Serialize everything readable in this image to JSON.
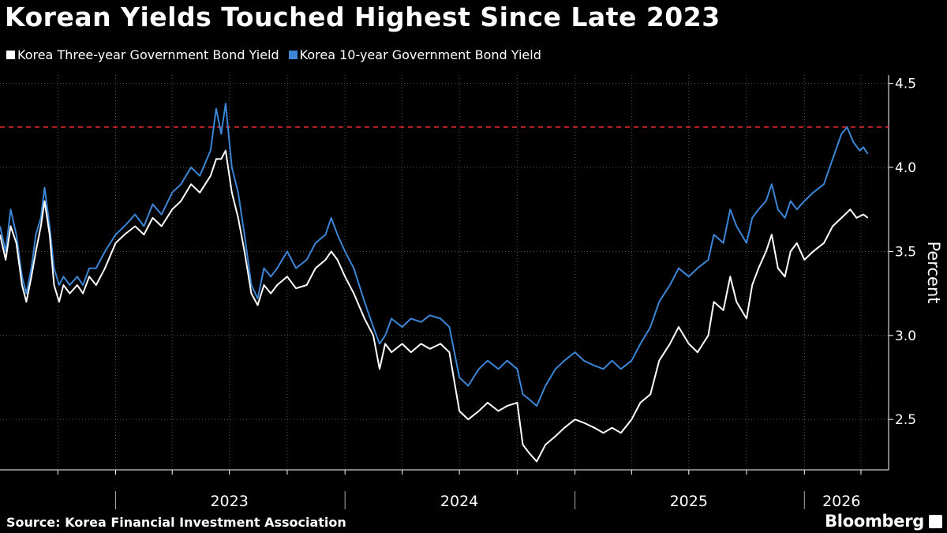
{
  "title": "Korean Yields Touched Highest Since Late 2023",
  "source": "Source: Korea Financial Investment Association",
  "brand": "Bloomberg",
  "chart_data": {
    "type": "line",
    "ylabel": "Percent",
    "ylim": [
      2.2,
      4.55
    ],
    "y_ticks": [
      2.5,
      3.0,
      3.5,
      4.0,
      4.5
    ],
    "y_tick_labels": [
      "2.5",
      "3.0",
      "3.5",
      "4.0",
      "4.5"
    ],
    "xlim": [
      "2022-07-01",
      "2026-05-15"
    ],
    "x_year_labels": [
      {
        "label": "2023",
        "date": "2023-07-01"
      },
      {
        "label": "2024",
        "date": "2024-07-01"
      },
      {
        "label": "2025",
        "date": "2025-07-01"
      },
      {
        "label": "2026",
        "date": "2026-03-01"
      }
    ],
    "x_year_boundaries": [
      "2023-01-01",
      "2024-01-01",
      "2025-01-01",
      "2026-01-01"
    ],
    "grid": true,
    "legend_position": "top-left",
    "reference_line": {
      "y": 4.24,
      "color": "#e0262e",
      "style": "dashed"
    },
    "series": [
      {
        "name": "Korea Three-year Government Bond Yield",
        "color": "#ffffff",
        "points": [
          [
            "2022-07-01",
            3.6
          ],
          [
            "2022-07-10",
            3.45
          ],
          [
            "2022-07-18",
            3.65
          ],
          [
            "2022-07-27",
            3.55
          ],
          [
            "2022-08-05",
            3.3
          ],
          [
            "2022-08-12",
            3.2
          ],
          [
            "2022-08-20",
            3.35
          ],
          [
            "2022-08-27",
            3.5
          ],
          [
            "2022-09-04",
            3.65
          ],
          [
            "2022-09-10",
            3.8
          ],
          [
            "2022-09-18",
            3.6
          ],
          [
            "2022-09-25",
            3.3
          ],
          [
            "2022-10-03",
            3.2
          ],
          [
            "2022-10-10",
            3.3
          ],
          [
            "2022-10-20",
            3.25
          ],
          [
            "2022-11-01",
            3.3
          ],
          [
            "2022-11-10",
            3.25
          ],
          [
            "2022-11-20",
            3.35
          ],
          [
            "2022-12-01",
            3.3
          ],
          [
            "2022-12-15",
            3.4
          ],
          [
            "2023-01-01",
            3.55
          ],
          [
            "2023-01-15",
            3.6
          ],
          [
            "2023-02-01",
            3.65
          ],
          [
            "2023-02-15",
            3.6
          ],
          [
            "2023-03-01",
            3.7
          ],
          [
            "2023-03-15",
            3.65
          ],
          [
            "2023-04-01",
            3.75
          ],
          [
            "2023-04-15",
            3.8
          ],
          [
            "2023-05-01",
            3.9
          ],
          [
            "2023-05-15",
            3.85
          ],
          [
            "2023-06-01",
            3.95
          ],
          [
            "2023-06-10",
            4.05
          ],
          [
            "2023-06-18",
            4.05
          ],
          [
            "2023-06-25",
            4.1
          ],
          [
            "2023-07-05",
            3.85
          ],
          [
            "2023-07-15",
            3.7
          ],
          [
            "2023-07-25",
            3.5
          ],
          [
            "2023-08-05",
            3.25
          ],
          [
            "2023-08-15",
            3.18
          ],
          [
            "2023-08-25",
            3.3
          ],
          [
            "2023-09-05",
            3.25
          ],
          [
            "2023-09-15",
            3.3
          ],
          [
            "2023-10-01",
            3.35
          ],
          [
            "2023-10-15",
            3.28
          ],
          [
            "2023-11-01",
            3.3
          ],
          [
            "2023-11-15",
            3.4
          ],
          [
            "2023-12-01",
            3.45
          ],
          [
            "2023-12-10",
            3.5
          ],
          [
            "2023-12-20",
            3.45
          ],
          [
            "2024-01-01",
            3.35
          ],
          [
            "2024-01-15",
            3.25
          ],
          [
            "2024-02-01",
            3.1
          ],
          [
            "2024-02-15",
            3.0
          ],
          [
            "2024-02-25",
            2.8
          ],
          [
            "2024-03-05",
            2.95
          ],
          [
            "2024-03-15",
            2.9
          ],
          [
            "2024-04-01",
            2.95
          ],
          [
            "2024-04-15",
            2.9
          ],
          [
            "2024-05-01",
            2.95
          ],
          [
            "2024-05-15",
            2.92
          ],
          [
            "2024-06-01",
            2.95
          ],
          [
            "2024-06-15",
            2.9
          ],
          [
            "2024-07-01",
            2.55
          ],
          [
            "2024-07-15",
            2.5
          ],
          [
            "2024-08-01",
            2.55
          ],
          [
            "2024-08-15",
            2.6
          ],
          [
            "2024-09-01",
            2.55
          ],
          [
            "2024-09-15",
            2.58
          ],
          [
            "2024-10-01",
            2.6
          ],
          [
            "2024-10-10",
            2.35
          ],
          [
            "2024-10-20",
            2.3
          ],
          [
            "2024-11-01",
            2.25
          ],
          [
            "2024-11-15",
            2.35
          ],
          [
            "2024-12-01",
            2.4
          ],
          [
            "2024-12-15",
            2.45
          ],
          [
            "2025-01-01",
            2.5
          ],
          [
            "2025-01-15",
            2.48
          ],
          [
            "2025-02-01",
            2.45
          ],
          [
            "2025-02-15",
            2.42
          ],
          [
            "2025-03-01",
            2.45
          ],
          [
            "2025-03-15",
            2.42
          ],
          [
            "2025-04-01",
            2.5
          ],
          [
            "2025-04-15",
            2.6
          ],
          [
            "2025-05-01",
            2.65
          ],
          [
            "2025-05-15",
            2.85
          ],
          [
            "2025-06-01",
            2.95
          ],
          [
            "2025-06-15",
            3.05
          ],
          [
            "2025-07-01",
            2.95
          ],
          [
            "2025-07-15",
            2.9
          ],
          [
            "2025-08-01",
            3.0
          ],
          [
            "2025-08-10",
            3.2
          ],
          [
            "2025-08-25",
            3.15
          ],
          [
            "2025-09-05",
            3.35
          ],
          [
            "2025-09-15",
            3.2
          ],
          [
            "2025-10-01",
            3.1
          ],
          [
            "2025-10-10",
            3.3
          ],
          [
            "2025-10-20",
            3.4
          ],
          [
            "2025-11-01",
            3.5
          ],
          [
            "2025-11-10",
            3.6
          ],
          [
            "2025-11-20",
            3.4
          ],
          [
            "2025-12-01",
            3.35
          ],
          [
            "2025-12-10",
            3.5
          ],
          [
            "2025-12-20",
            3.55
          ],
          [
            "2026-01-01",
            3.45
          ],
          [
            "2026-01-15",
            3.5
          ],
          [
            "2026-02-01",
            3.55
          ],
          [
            "2026-02-15",
            3.65
          ],
          [
            "2026-03-01",
            3.7
          ],
          [
            "2026-03-15",
            3.75
          ],
          [
            "2026-03-25",
            3.7
          ],
          [
            "2026-04-05",
            3.72
          ],
          [
            "2026-04-12",
            3.7
          ]
        ]
      },
      {
        "name": "Korea 10-year Government Bond Yield",
        "color": "#3b86d6",
        "points": [
          [
            "2022-07-01",
            3.65
          ],
          [
            "2022-07-10",
            3.5
          ],
          [
            "2022-07-18",
            3.75
          ],
          [
            "2022-07-27",
            3.6
          ],
          [
            "2022-08-05",
            3.35
          ],
          [
            "2022-08-12",
            3.25
          ],
          [
            "2022-08-20",
            3.4
          ],
          [
            "2022-08-27",
            3.6
          ],
          [
            "2022-09-04",
            3.7
          ],
          [
            "2022-09-10",
            3.88
          ],
          [
            "2022-09-18",
            3.65
          ],
          [
            "2022-09-25",
            3.4
          ],
          [
            "2022-10-03",
            3.3
          ],
          [
            "2022-10-10",
            3.35
          ],
          [
            "2022-10-20",
            3.3
          ],
          [
            "2022-11-01",
            3.35
          ],
          [
            "2022-11-10",
            3.3
          ],
          [
            "2022-11-20",
            3.4
          ],
          [
            "2022-12-01",
            3.4
          ],
          [
            "2022-12-15",
            3.5
          ],
          [
            "2023-01-01",
            3.6
          ],
          [
            "2023-01-15",
            3.65
          ],
          [
            "2023-02-01",
            3.72
          ],
          [
            "2023-02-15",
            3.65
          ],
          [
            "2023-03-01",
            3.78
          ],
          [
            "2023-03-15",
            3.72
          ],
          [
            "2023-04-01",
            3.85
          ],
          [
            "2023-04-15",
            3.9
          ],
          [
            "2023-05-01",
            4.0
          ],
          [
            "2023-05-15",
            3.95
          ],
          [
            "2023-06-01",
            4.1
          ],
          [
            "2023-06-10",
            4.35
          ],
          [
            "2023-06-18",
            4.2
          ],
          [
            "2023-06-25",
            4.38
          ],
          [
            "2023-07-05",
            4.0
          ],
          [
            "2023-07-15",
            3.85
          ],
          [
            "2023-07-25",
            3.6
          ],
          [
            "2023-08-05",
            3.3
          ],
          [
            "2023-08-15",
            3.22
          ],
          [
            "2023-08-25",
            3.4
          ],
          [
            "2023-09-05",
            3.35
          ],
          [
            "2023-09-15",
            3.4
          ],
          [
            "2023-10-01",
            3.5
          ],
          [
            "2023-10-15",
            3.4
          ],
          [
            "2023-11-01",
            3.45
          ],
          [
            "2023-11-15",
            3.55
          ],
          [
            "2023-12-01",
            3.6
          ],
          [
            "2023-12-10",
            3.7
          ],
          [
            "2023-12-20",
            3.6
          ],
          [
            "2024-01-01",
            3.5
          ],
          [
            "2024-01-15",
            3.4
          ],
          [
            "2024-02-01",
            3.2
          ],
          [
            "2024-02-15",
            3.05
          ],
          [
            "2024-02-25",
            2.95
          ],
          [
            "2024-03-05",
            3.0
          ],
          [
            "2024-03-15",
            3.1
          ],
          [
            "2024-04-01",
            3.05
          ],
          [
            "2024-04-15",
            3.1
          ],
          [
            "2024-05-01",
            3.08
          ],
          [
            "2024-05-15",
            3.12
          ],
          [
            "2024-06-01",
            3.1
          ],
          [
            "2024-06-15",
            3.05
          ],
          [
            "2024-07-01",
            2.75
          ],
          [
            "2024-07-15",
            2.7
          ],
          [
            "2024-08-01",
            2.8
          ],
          [
            "2024-08-15",
            2.85
          ],
          [
            "2024-09-01",
            2.8
          ],
          [
            "2024-09-15",
            2.85
          ],
          [
            "2024-10-01",
            2.8
          ],
          [
            "2024-10-10",
            2.65
          ],
          [
            "2024-10-20",
            2.62
          ],
          [
            "2024-11-01",
            2.58
          ],
          [
            "2024-11-15",
            2.7
          ],
          [
            "2024-12-01",
            2.8
          ],
          [
            "2024-12-15",
            2.85
          ],
          [
            "2025-01-01",
            2.9
          ],
          [
            "2025-01-15",
            2.85
          ],
          [
            "2025-02-01",
            2.82
          ],
          [
            "2025-02-15",
            2.8
          ],
          [
            "2025-03-01",
            2.85
          ],
          [
            "2025-03-15",
            2.8
          ],
          [
            "2025-04-01",
            2.85
          ],
          [
            "2025-04-15",
            2.95
          ],
          [
            "2025-05-01",
            3.05
          ],
          [
            "2025-05-15",
            3.2
          ],
          [
            "2025-06-01",
            3.3
          ],
          [
            "2025-06-15",
            3.4
          ],
          [
            "2025-07-01",
            3.35
          ],
          [
            "2025-07-15",
            3.4
          ],
          [
            "2025-08-01",
            3.45
          ],
          [
            "2025-08-10",
            3.6
          ],
          [
            "2025-08-25",
            3.55
          ],
          [
            "2025-09-05",
            3.75
          ],
          [
            "2025-09-15",
            3.65
          ],
          [
            "2025-10-01",
            3.55
          ],
          [
            "2025-10-10",
            3.7
          ],
          [
            "2025-10-20",
            3.75
          ],
          [
            "2025-11-01",
            3.8
          ],
          [
            "2025-11-10",
            3.9
          ],
          [
            "2025-11-20",
            3.75
          ],
          [
            "2025-12-01",
            3.7
          ],
          [
            "2025-12-10",
            3.8
          ],
          [
            "2025-12-20",
            3.75
          ],
          [
            "2026-01-01",
            3.8
          ],
          [
            "2026-01-15",
            3.85
          ],
          [
            "2026-02-01",
            3.9
          ],
          [
            "2026-02-15",
            4.05
          ],
          [
            "2026-03-01",
            4.2
          ],
          [
            "2026-03-10",
            4.24
          ],
          [
            "2026-03-20",
            4.15
          ],
          [
            "2026-03-30",
            4.1
          ],
          [
            "2026-04-05",
            4.12
          ],
          [
            "2026-04-12",
            4.08
          ]
        ]
      }
    ]
  }
}
